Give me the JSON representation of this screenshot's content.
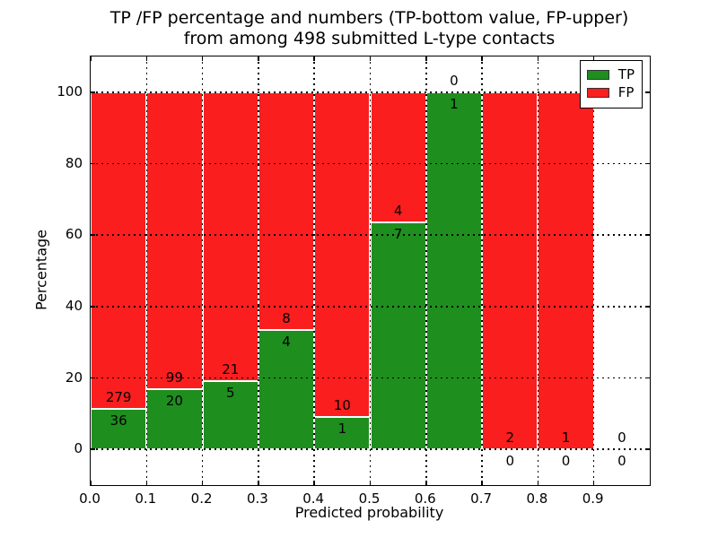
{
  "title": {
    "line1": "TP /FP percentage and numbers (TP-bottom value, FP-upper)",
    "line2": "from among 498 submitted L-type contacts"
  },
  "chart_data": {
    "type": "bar",
    "subtype": "stacked-percentage-histogram",
    "title": "TP /FP percentage and numbers (TP-bottom value, FP-upper)\nfrom among 498 submitted L-type contacts",
    "xlabel": "Predicted probability",
    "ylabel": "Percentage",
    "xlim": [
      0.0,
      1.0
    ],
    "ylim": [
      -10,
      110
    ],
    "bin_width": 0.1,
    "bin_starts": [
      0.0,
      0.1,
      0.2,
      0.3,
      0.4,
      0.5,
      0.6,
      0.7,
      0.8,
      0.9
    ],
    "xtick_labels": [
      "0.0",
      "0.1",
      "0.2",
      "0.3",
      "0.4",
      "0.5",
      "0.6",
      "0.7",
      "0.8",
      "0.9"
    ],
    "ytick_values": [
      0,
      20,
      40,
      60,
      80,
      100
    ],
    "series": [
      {
        "name": "TP",
        "color": "#1E8E1E",
        "values": [
          36,
          20,
          5,
          4,
          1,
          7,
          1,
          0,
          0,
          0
        ]
      },
      {
        "name": "FP",
        "color": "#FA1E1E",
        "values": [
          279,
          99,
          21,
          8,
          10,
          4,
          0,
          2,
          1,
          0
        ]
      }
    ],
    "total_contacts": 498,
    "grid": true,
    "legend_position": "upper right",
    "annotation_rule": "FP count printed above the TP/FP boundary, TP count printed below it"
  }
}
